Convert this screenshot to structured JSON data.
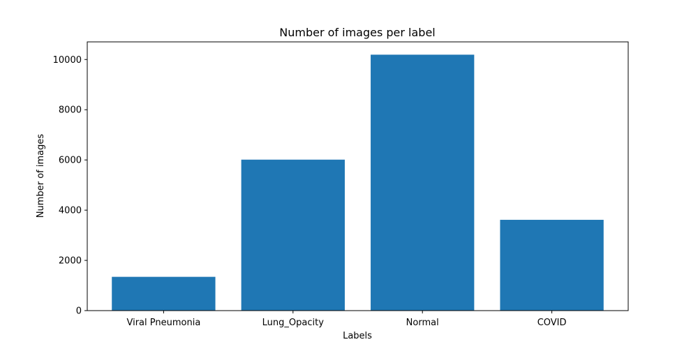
{
  "chart_data": {
    "type": "bar",
    "title": "Number of images per label",
    "xlabel": "Labels",
    "ylabel": "Number of images",
    "categories": [
      "Viral Pneumonia",
      "Lung_Opacity",
      "Normal",
      "COVID"
    ],
    "values": [
      1345,
      6012,
      10192,
      3616
    ],
    "ylim": [
      0,
      10702
    ],
    "yticks": [
      0,
      2000,
      4000,
      6000,
      8000,
      10000
    ],
    "grid": false,
    "legend": "none",
    "bar_color": "#1f77b4"
  }
}
